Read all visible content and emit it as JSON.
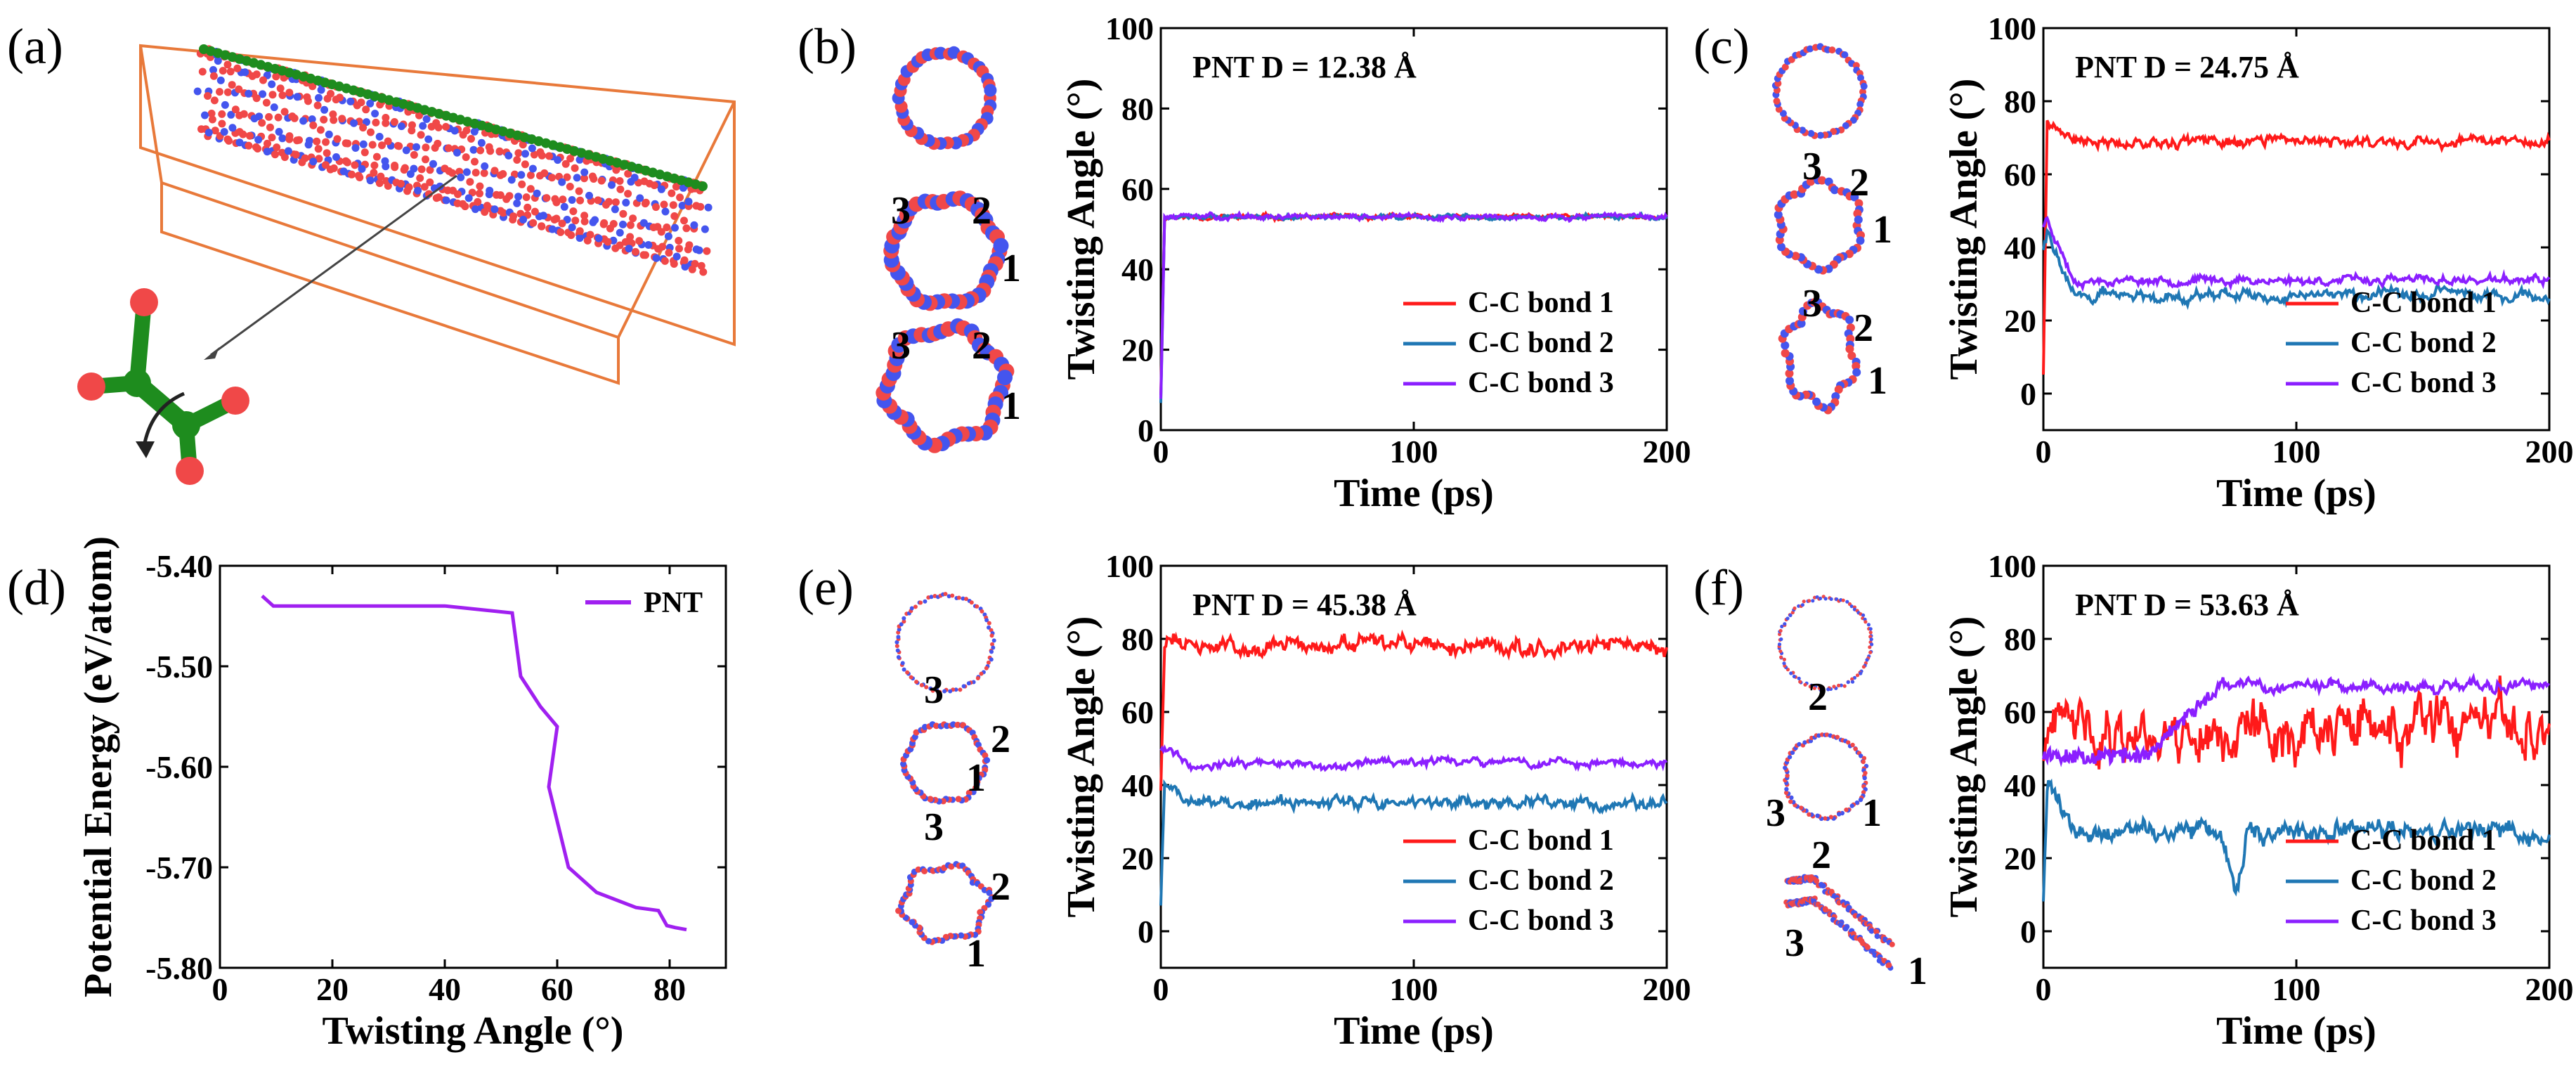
{
  "panel_labels": {
    "a": "(a)",
    "b": "(b)",
    "c": "(c)",
    "d": "(d)",
    "e": "(e)",
    "f": "(f)"
  },
  "bond_numbers": {
    "one": "1",
    "two": "2",
    "three": "3"
  },
  "colors": {
    "bond1": "#ff1a1a",
    "bond2": "#1f77b4",
    "bond3": "#8b1fff",
    "pe": "#a020f0",
    "box": "#e8793a",
    "atom_red": "#f04848",
    "atom_blue": "#4455ee",
    "atom_green": "#1e8c1e"
  },
  "chart_data": [
    {
      "id": "b",
      "type": "line",
      "annotation": "PNT  D = 12.38 Å",
      "xlabel": "Time (ps)",
      "ylabel": "Twisting Angle (°)",
      "xlim": [
        0,
        200
      ],
      "ylim": [
        0,
        100
      ],
      "xticks": [
        "0",
        "100",
        "200"
      ],
      "yticks": [
        "0",
        "20",
        "40",
        "60",
        "80",
        "100"
      ],
      "series": [
        {
          "name": "C-C bond 1",
          "color": "#ff1a1a",
          "start": 9,
          "base": 53,
          "noise": 0.6,
          "seed": 11
        },
        {
          "name": "C-C bond 2",
          "color": "#1f77b4",
          "start": 7,
          "base": 53,
          "noise": 0.6,
          "seed": 12
        },
        {
          "name": "C-C bond 3",
          "color": "#8b1fff",
          "start": 8,
          "base": 53,
          "noise": 0.7,
          "seed": 13
        }
      ]
    },
    {
      "id": "c",
      "type": "line",
      "annotation": "PNT  D = 24.75 Å",
      "xlabel": "Time (ps)",
      "ylabel": "Twisting Angle (°)",
      "xlim": [
        0,
        200
      ],
      "ylim": [
        -10,
        100
      ],
      "xticks": [
        "0",
        "100",
        "200"
      ],
      "yticks": [
        "0",
        "20",
        "40",
        "60",
        "80",
        "100"
      ],
      "series": [
        {
          "name": "C-C bond 1",
          "color": "#ff1a1a",
          "start": 6,
          "peak": 75,
          "base": 69,
          "noise": 1.5,
          "seed": 21
        },
        {
          "name": "C-C bond 2",
          "color": "#1f77b4",
          "start": 40,
          "peak": 44,
          "base": 27,
          "noise": 1.6,
          "seed": 22
        },
        {
          "name": "C-C bond 3",
          "color": "#8b1fff",
          "start": 46,
          "peak": 48,
          "base": 31,
          "noise": 1.2,
          "seed": 23
        }
      ]
    },
    {
      "id": "e",
      "type": "line",
      "annotation": "PNT  D = 45.38 Å",
      "xlabel": "Time (ps)",
      "ylabel": "Twisting Angle (°)",
      "xlim": [
        0,
        200
      ],
      "ylim": [
        -10,
        100
      ],
      "xticks": [
        "0",
        "100",
        "200"
      ],
      "yticks": [
        "0",
        "20",
        "40",
        "60",
        "80",
        "100"
      ],
      "series": [
        {
          "name": "C-C bond 1",
          "color": "#ff1a1a",
          "start": 40,
          "peak": 80,
          "base": 78,
          "noise": 2.4,
          "seed": 31
        },
        {
          "name": "C-C bond 2",
          "color": "#1f77b4",
          "start": 8,
          "peak": 40,
          "base": 35,
          "noise": 1.8,
          "seed": 32
        },
        {
          "name": "C-C bond 3",
          "color": "#8b1fff",
          "start": 50,
          "peak": 50,
          "base": 46,
          "noise": 1.2,
          "seed": 33
        }
      ]
    },
    {
      "id": "f",
      "type": "line",
      "annotation": "PNT  D = 53.63 Å",
      "xlabel": "Time (ps)",
      "ylabel": "Twisting Angle (°)",
      "xlim": [
        0,
        200
      ],
      "ylim": [
        -10,
        100
      ],
      "xticks": [
        "0",
        "100",
        "200"
      ],
      "yticks": [
        "0",
        "20",
        "40",
        "60",
        "80",
        "100"
      ],
      "series": [
        {
          "name": "C-C bond 1",
          "color": "#ff1a1a",
          "start": 45,
          "peak": 55,
          "base": 55,
          "noise": 8,
          "seed": 41
        },
        {
          "name": "C-C bond 2",
          "color": "#1f77b4",
          "start": 10,
          "peak": 40,
          "base": 27,
          "noise": 3,
          "seed": 42
        },
        {
          "name": "C-C bond 3",
          "color": "#8b1fff",
          "start": 48,
          "peak": 52,
          "base": 67,
          "noise": 1.8,
          "seed": 43
        }
      ]
    },
    {
      "id": "d",
      "type": "line",
      "legend": "PNT",
      "xlabel": "Twisting Angle (°)",
      "ylabel": "Potential Energy (eV/atom)",
      "xlim": [
        0,
        90
      ],
      "ylim": [
        -5.8,
        -5.4
      ],
      "xticks": [
        "0",
        "20",
        "40",
        "60",
        "80"
      ],
      "yticks": [
        "-5.40",
        "-5.50",
        "-5.60",
        "-5.70",
        "-5.80"
      ],
      "x": [
        7.5,
        9.5,
        20,
        40,
        52,
        53.5,
        57,
        60,
        58.5,
        62,
        67,
        74,
        78,
        79.5,
        81,
        83
      ],
      "y": [
        -5.43,
        -5.44,
        -5.44,
        -5.44,
        -5.447,
        -5.51,
        -5.54,
        -5.56,
        -5.62,
        -5.7,
        -5.725,
        -5.74,
        -5.743,
        -5.758,
        -5.76,
        -5.762
      ]
    }
  ]
}
